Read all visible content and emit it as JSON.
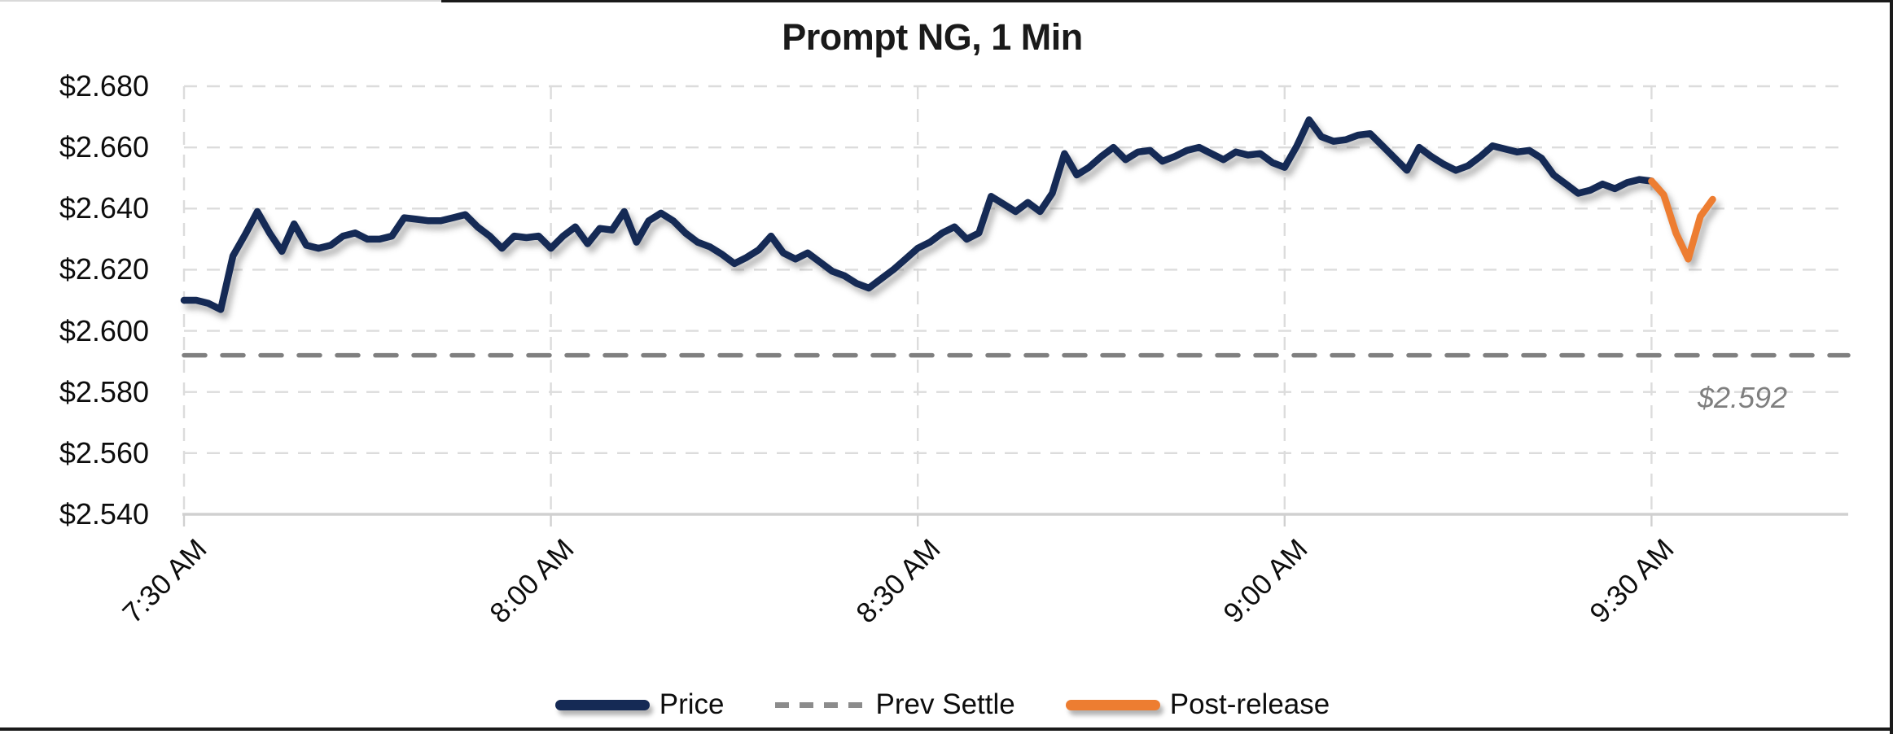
{
  "title": "Prompt NG, 1 Min",
  "annotation": {
    "prev_settle_label": "$2.592"
  },
  "legend": [
    {
      "label": "Price",
      "color": "#152a55",
      "style": "solid"
    },
    {
      "label": "Prev Settle",
      "color": "#8c8c8c",
      "style": "dashed"
    },
    {
      "label": "Post-release",
      "color": "#ED7D31",
      "style": "solid"
    }
  ],
  "colors": {
    "price_line": "#152a55",
    "post_release_line": "#ED7D31",
    "prev_settle_line": "#7f7f7f",
    "gridline": "#dcdcdc",
    "axis_line": "#d0d0d0"
  },
  "chart_data": {
    "type": "line",
    "title": "Prompt NG, 1 Min",
    "xlabel": "",
    "ylabel": "",
    "x_unit": "minutes since 7:30 AM",
    "x_tick_labels": [
      "7:30 AM",
      "8:00 AM",
      "8:30 AM",
      "9:00 AM",
      "9:30 AM"
    ],
    "x_tick_minutes": [
      0,
      30,
      60,
      90,
      120
    ],
    "x_range_minutes": [
      0,
      136
    ],
    "ylim": [
      2.54,
      2.68
    ],
    "y_tick_step": 0.02,
    "y_tick_labels": [
      "$2.540",
      "$2.560",
      "$2.580",
      "$2.600",
      "$2.620",
      "$2.640",
      "$2.660",
      "$2.680"
    ],
    "grid": "dashed-horizontal-and-vertical",
    "legend_position": "bottom-center",
    "prev_settle_value": 2.592,
    "series": [
      {
        "name": "Price",
        "start_minute": 0,
        "values": [
          2.61,
          2.61,
          2.609,
          2.607,
          2.6245,
          2.6315,
          2.639,
          2.632,
          2.626,
          2.635,
          2.628,
          2.627,
          2.628,
          2.631,
          2.632,
          2.63,
          2.63,
          2.631,
          2.637,
          2.6365,
          2.636,
          2.636,
          2.637,
          2.638,
          2.634,
          2.631,
          2.627,
          2.631,
          2.6305,
          2.631,
          2.627,
          2.631,
          2.634,
          2.6285,
          2.6335,
          2.633,
          2.639,
          2.629,
          2.636,
          2.6385,
          2.636,
          2.632,
          2.629,
          2.6275,
          2.625,
          2.622,
          2.624,
          2.6265,
          2.631,
          2.6255,
          2.6235,
          2.6255,
          2.6225,
          2.6195,
          2.618,
          2.6155,
          2.614,
          2.617,
          2.62,
          2.6235,
          2.627,
          2.629,
          2.632,
          2.634,
          2.63,
          2.632,
          2.644,
          2.6415,
          2.639,
          2.642,
          2.639,
          2.645,
          2.658,
          2.651,
          2.6535,
          2.657,
          2.66,
          2.656,
          2.6585,
          2.659,
          2.6555,
          2.657,
          2.659,
          2.66,
          2.658,
          2.656,
          2.6585,
          2.6575,
          2.658,
          2.655,
          2.6535,
          2.6605,
          2.669,
          2.6635,
          2.662,
          2.6625,
          2.664,
          2.6645,
          2.6605,
          2.6565,
          2.6525,
          2.66,
          2.657,
          2.6545,
          2.6525,
          2.654,
          2.657,
          2.6605,
          2.6595,
          2.6585,
          2.659,
          2.6565,
          2.651,
          2.648,
          2.645,
          2.646,
          2.648,
          2.6465,
          2.6485,
          2.6495,
          2.649
        ]
      },
      {
        "name": "Post-release",
        "start_minute": 120,
        "values": [
          2.649,
          2.6445,
          2.632,
          2.6235,
          2.6375,
          2.643
        ]
      },
      {
        "name": "Prev Settle",
        "style": "dashed-horizontal",
        "value": 2.592
      }
    ]
  }
}
